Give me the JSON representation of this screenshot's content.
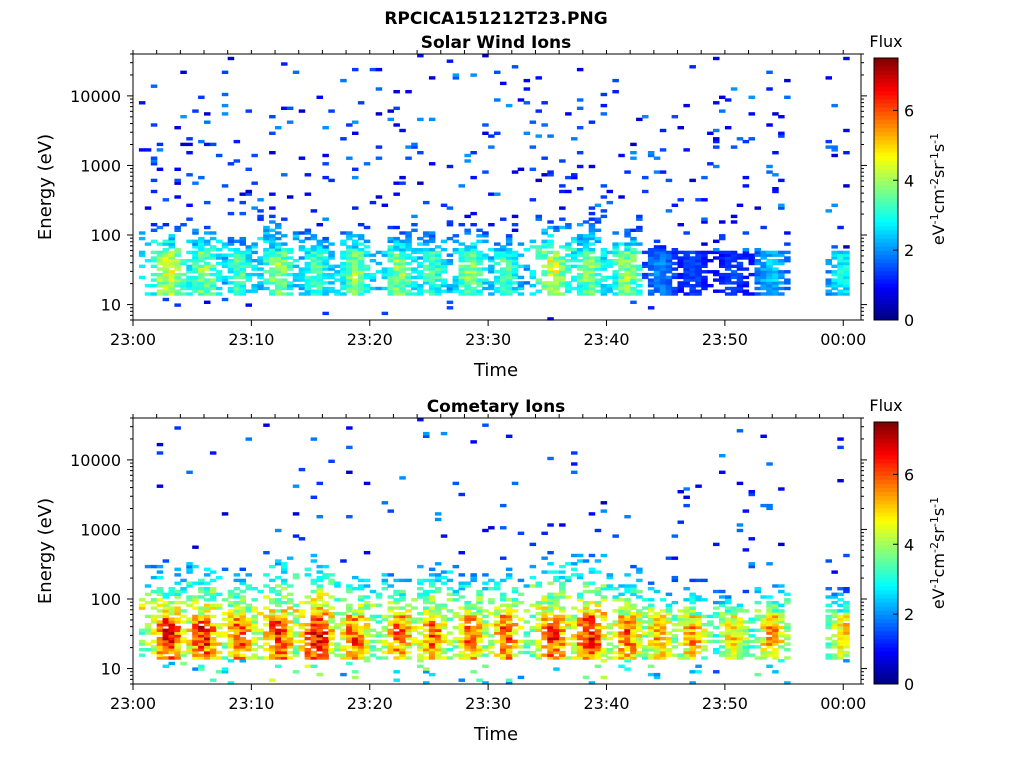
{
  "figure": {
    "title": "RPCICA151212T23.PNG"
  },
  "chart_data": [
    {
      "type": "heatmap",
      "title": "Solar Wind Ions",
      "xlabel": "Time",
      "ylabel": "Energy (eV)",
      "y_scale": "log",
      "y_range": [
        6,
        40000
      ],
      "x_range": [
        "23:00",
        "00:01:30"
      ],
      "x_ticks": [
        "23:00",
        "23:10",
        "23:20",
        "23:30",
        "23:40",
        "23:50",
        "00:00"
      ],
      "y_ticks": [
        "10",
        "100",
        "1000",
        "10000"
      ],
      "colorbar": {
        "label": "Flux",
        "unit": "eV-1cm-2sr-1s-1",
        "range": [
          0,
          7.5
        ],
        "ticks": [
          "0",
          "2",
          "4",
          "6"
        ],
        "colormap": "jet"
      },
      "grid": false,
      "data_gap": [
        "23:55",
        "23:58:30"
      ],
      "bursts": [
        {
          "time": "23:02:45",
          "low_band_flux": 4.5,
          "upper_energy": 150
        },
        {
          "time": "23:05:45",
          "low_band_flux": 4.0,
          "upper_energy": 200
        },
        {
          "time": "23:08:45",
          "low_band_flux": 3.5,
          "upper_energy": 120
        },
        {
          "time": "23:12:00",
          "low_band_flux": 4.0,
          "upper_energy": 250
        },
        {
          "time": "23:15:15",
          "low_band_flux": 3.5,
          "upper_energy": 150
        },
        {
          "time": "23:18:30",
          "low_band_flux": 4.0,
          "upper_energy": 150
        },
        {
          "time": "23:22:15",
          "low_band_flux": 4.0,
          "upper_energy": 150
        },
        {
          "time": "23:25:00",
          "low_band_flux": 3.5,
          "upper_energy": 180
        },
        {
          "time": "23:28:15",
          "low_band_flux": 4.0,
          "upper_energy": 150
        },
        {
          "time": "23:31:15",
          "low_band_flux": 3.5,
          "upper_energy": 120
        },
        {
          "time": "23:35:15",
          "low_band_flux": 4.5,
          "upper_energy": 200
        },
        {
          "time": "23:38:15",
          "low_band_flux": 4.0,
          "upper_energy": 250
        },
        {
          "time": "23:41:30",
          "low_band_flux": 4.0,
          "upper_energy": 150
        },
        {
          "time": "23:44:15",
          "low_band_flux": 2.0,
          "upper_energy": 80
        },
        {
          "time": "23:47:00",
          "low_band_flux": 1.5,
          "upper_energy": 60
        },
        {
          "time": "23:50:30",
          "low_band_flux": 1.5,
          "upper_energy": 50
        },
        {
          "time": "23:53:45",
          "low_band_flux": 2.5,
          "upper_energy": 60
        },
        {
          "time": "23:59:45",
          "low_band_flux": 3.0,
          "upper_energy": 40
        }
      ]
    },
    {
      "type": "heatmap",
      "title": "Cometary Ions",
      "xlabel": "Time",
      "ylabel": "Energy (eV)",
      "y_scale": "log",
      "y_range": [
        6,
        40000
      ],
      "x_range": [
        "23:00",
        "00:01:30"
      ],
      "x_ticks": [
        "23:00",
        "23:10",
        "23:20",
        "23:30",
        "23:40",
        "23:50",
        "00:00"
      ],
      "y_ticks": [
        "10",
        "100",
        "1000",
        "10000"
      ],
      "colorbar": {
        "label": "Flux",
        "unit": "eV-1cm-2sr-1s-1",
        "range": [
          0,
          7.5
        ],
        "ticks": [
          "0",
          "2",
          "4",
          "6"
        ],
        "colormap": "jet"
      },
      "grid": false,
      "data_gap": [
        "23:55",
        "23:58:30"
      ],
      "bursts": [
        {
          "time": "23:02:45",
          "low_band_flux": 6.5,
          "upper_energy": 300
        },
        {
          "time": "23:05:45",
          "low_band_flux": 6.5,
          "upper_energy": 400
        },
        {
          "time": "23:08:45",
          "low_band_flux": 6.0,
          "upper_energy": 300
        },
        {
          "time": "23:12:00",
          "low_band_flux": 6.5,
          "upper_energy": 500
        },
        {
          "time": "23:15:15",
          "low_band_flux": 7.0,
          "upper_energy": 500
        },
        {
          "time": "23:18:30",
          "low_band_flux": 6.0,
          "upper_energy": 300
        },
        {
          "time": "23:22:15",
          "low_band_flux": 6.0,
          "upper_energy": 300
        },
        {
          "time": "23:25:00",
          "low_band_flux": 6.0,
          "upper_energy": 400
        },
        {
          "time": "23:28:15",
          "low_band_flux": 6.0,
          "upper_energy": 300
        },
        {
          "time": "23:31:15",
          "low_band_flux": 6.0,
          "upper_energy": 300
        },
        {
          "time": "23:35:15",
          "low_band_flux": 6.5,
          "upper_energy": 500
        },
        {
          "time": "23:38:15",
          "low_band_flux": 6.5,
          "upper_energy": 500
        },
        {
          "time": "23:41:30",
          "low_band_flux": 6.0,
          "upper_energy": 300
        },
        {
          "time": "23:44:15",
          "low_band_flux": 5.5,
          "upper_energy": 200
        },
        {
          "time": "23:47:00",
          "low_band_flux": 5.5,
          "upper_energy": 200
        },
        {
          "time": "23:50:30",
          "low_band_flux": 5.0,
          "upper_energy": 150
        },
        {
          "time": "23:53:45",
          "low_band_flux": 5.5,
          "upper_energy": 200
        },
        {
          "time": "23:59:45",
          "low_band_flux": 5.0,
          "upper_energy": 150
        }
      ]
    }
  ]
}
